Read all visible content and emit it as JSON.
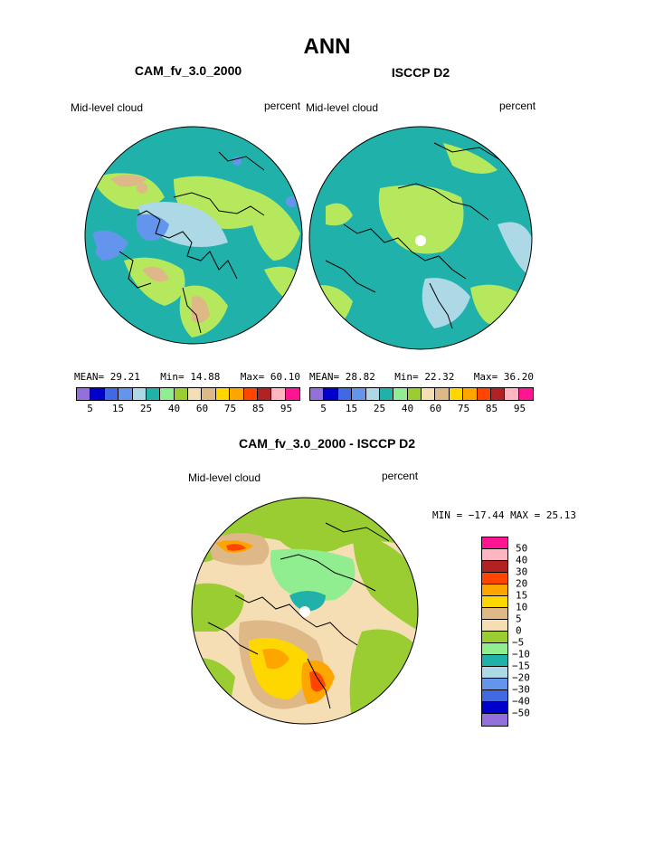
{
  "page": {
    "title": "ANN",
    "left_panel": {
      "model_title": "CAM_fv_3.0_2000",
      "left_label": "Mid-level cloud",
      "right_label": "percent",
      "stats": {
        "mean_label": "MEAN=",
        "mean_value": "29.21",
        "min_label": "Min=",
        "min_value": "14.88",
        "max_label": "Max=",
        "max_value": "60.10"
      }
    },
    "right_panel": {
      "model_title": "ISCCP D2",
      "left_label": "Mid-level cloud",
      "right_label": "percent",
      "stats": {
        "mean_label": "MEAN=",
        "mean_value": "28.82",
        "min_label": "Min=",
        "min_value": "22.32",
        "max_label": "Max=",
        "max_value": "36.20"
      }
    },
    "diff_panel": {
      "title": "CAM_fv_3.0_2000 - ISCCP D2",
      "left_label": "Mid-level cloud",
      "right_label": "percent",
      "minmax_text": "MIN = −17.44 MAX =  25.13"
    }
  },
  "colorbars": {
    "top_colors": [
      "#9370db",
      "#0000cd",
      "#4169e1",
      "#6495ed",
      "#add8e6",
      "#20b2aa",
      "#90ee90",
      "#9acd32",
      "#f5deb3",
      "#deb887",
      "#ffd700",
      "#ffa500",
      "#ff4500",
      "#b22222",
      "#ffb6c1",
      "#ff1493"
    ],
    "top_ticks": [
      "5",
      "15",
      "25",
      "40",
      "60",
      "75",
      "85",
      "95"
    ],
    "diff_colors": [
      "#ff1493",
      "#ffb6c1",
      "#b22222",
      "#ff4500",
      "#ffa500",
      "#ffd700",
      "#deb887",
      "#f5deb3",
      "#9acd32",
      "#90ee90",
      "#20b2aa",
      "#add8e6",
      "#6495ed",
      "#4169e1",
      "#0000cd",
      "#9370db"
    ],
    "diff_ticks": [
      "50",
      "40",
      "30",
      "20",
      "15",
      "10",
      "5",
      "0",
      "−5",
      "−10",
      "−15",
      "−20",
      "−30",
      "−40",
      "−50"
    ]
  },
  "map_colors": {
    "teal": "#20b2aa",
    "light_green": "#90ee90",
    "yellow_green": "#b5e85c",
    "light_blue": "#add8e6",
    "blue": "#6495ed",
    "tan": "#deb887",
    "wheat": "#f5deb3",
    "gold": "#ffd700",
    "orange": "#ffa500",
    "red": "#ff4500",
    "olive": "#9acd32"
  }
}
